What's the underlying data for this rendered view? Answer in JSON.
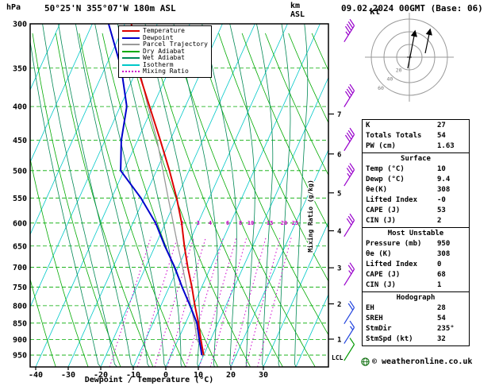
{
  "header": {
    "pressure_unit": "hPa",
    "title": "50°25'N 355°07'W 180m ASL",
    "datetime": "09.02.2024 00GMT (Base: 06)",
    "altitude_unit": "km",
    "altitude_ref": "ASL",
    "hodograph_unit": "kt"
  },
  "legend": [
    {
      "label": "Temperature",
      "color": "#dd0000",
      "style": "solid"
    },
    {
      "label": "Dewpoint",
      "color": "#0000cc",
      "style": "solid"
    },
    {
      "label": "Parcel Trajectory",
      "color": "#999999",
      "style": "solid"
    },
    {
      "label": "Dry Adiabat",
      "color": "#00aa00",
      "style": "solid"
    },
    {
      "label": "Wet Adiabat",
      "color": "#008855",
      "style": "solid"
    },
    {
      "label": "Isotherm",
      "color": "#00c8c8",
      "style": "solid"
    },
    {
      "label": "Mixing Ratio",
      "color": "#cc00cc",
      "style": "dotted"
    }
  ],
  "axes": {
    "pressure_ticks": [
      300,
      350,
      400,
      450,
      500,
      550,
      600,
      650,
      700,
      750,
      800,
      850,
      900,
      950
    ],
    "temperature_ticks": [
      -40,
      -30,
      -20,
      -10,
      0,
      10,
      20,
      30
    ],
    "x_label": "Dewpoint / Temperature (°C)",
    "mixing_ratio_label": "Mixing Ratio (g/kg)",
    "mixing_ratio_values": [
      1,
      2,
      3,
      4,
      6,
      8,
      10,
      15,
      20,
      25
    ],
    "altitude_ticks": [
      1,
      2,
      3,
      4,
      5,
      6,
      7
    ],
    "lcl_label": "LCL",
    "gridline_color": "#00aa00"
  },
  "chart_data": {
    "type": "line",
    "title": "Skew-T log-P atmospheric sounding",
    "x_axis": "Temperature (°C)",
    "y_axis": "Pressure (hPa)",
    "x_range": [
      -40,
      38
    ],
    "y_range": [
      300,
      990
    ],
    "pressure_levels": [
      950,
      925,
      900,
      850,
      800,
      750,
      700,
      650,
      600,
      550,
      500,
      450,
      400,
      350,
      300
    ],
    "series": [
      {
        "name": "Temperature",
        "color": "#dd0000",
        "values": [
          10,
          8.5,
          7,
          4,
          0.5,
          -3,
          -7,
          -11,
          -15,
          -20,
          -26,
          -33,
          -41,
          -50,
          -58
        ]
      },
      {
        "name": "Dewpoint",
        "color": "#0000cc",
        "values": [
          9.4,
          8,
          6.5,
          3.5,
          -1,
          -6,
          -11,
          -17,
          -23,
          -31,
          -41,
          -45,
          -48,
          -55,
          -65
        ]
      },
      {
        "name": "Parcel Trajectory",
        "color": "#999999",
        "values": [
          10,
          8.2,
          5.8,
          2.8,
          -0.8,
          -4.6,
          -8.6,
          -13,
          -17.6,
          -22.6,
          -28,
          -34,
          -41.5,
          -49.5,
          -58
        ]
      }
    ],
    "wind_barbs": [
      {
        "pressure": 315,
        "speed_kt": 45,
        "color": "#9900cc"
      },
      {
        "pressure": 395,
        "speed_kt": 40,
        "color": "#9900cc"
      },
      {
        "pressure": 460,
        "speed_kt": 40,
        "color": "#9900cc"
      },
      {
        "pressure": 520,
        "speed_kt": 35,
        "color": "#9900cc"
      },
      {
        "pressure": 620,
        "speed_kt": 30,
        "color": "#9900cc"
      },
      {
        "pressure": 735,
        "speed_kt": 25,
        "color": "#9900cc"
      },
      {
        "pressure": 840,
        "speed_kt": 20,
        "color": "#2244dd"
      },
      {
        "pressure": 900,
        "speed_kt": 15,
        "color": "#2244dd"
      },
      {
        "pressure": 955,
        "speed_kt": 10,
        "color": "#009900"
      }
    ],
    "hodograph": {
      "ring_spacing_kt": 20,
      "ring_labels": [
        20,
        40,
        60
      ],
      "storm_direction_deg": 235,
      "storm_speed_kt": 32
    }
  },
  "table": {
    "sections": [
      {
        "header": null,
        "rows": [
          [
            "K",
            "27"
          ],
          [
            "Totals Totals",
            "54"
          ],
          [
            "PW (cm)",
            "1.63"
          ]
        ]
      },
      {
        "header": "Surface",
        "rows": [
          [
            "Temp (°C)",
            "10"
          ],
          [
            "Dewp (°C)",
            "9.4"
          ],
          [
            "θe(K)",
            "308"
          ],
          [
            "Lifted Index",
            "-0"
          ],
          [
            "CAPE (J)",
            "53"
          ],
          [
            "CIN (J)",
            "2"
          ]
        ]
      },
      {
        "header": "Most Unstable",
        "rows": [
          [
            "Pressure (mb)",
            "950"
          ],
          [
            "θe (K)",
            "308"
          ],
          [
            "Lifted Index",
            "0"
          ],
          [
            "CAPE (J)",
            "68"
          ],
          [
            "CIN (J)",
            "1"
          ]
        ]
      },
      {
        "header": "Hodograph",
        "rows": [
          [
            "EH",
            "28"
          ],
          [
            "SREH",
            "54"
          ],
          [
            "StmDir",
            "235°"
          ],
          [
            "StmSpd (kt)",
            "32"
          ]
        ]
      }
    ]
  },
  "footer": {
    "copyright": "© weatheronline.co.uk"
  }
}
